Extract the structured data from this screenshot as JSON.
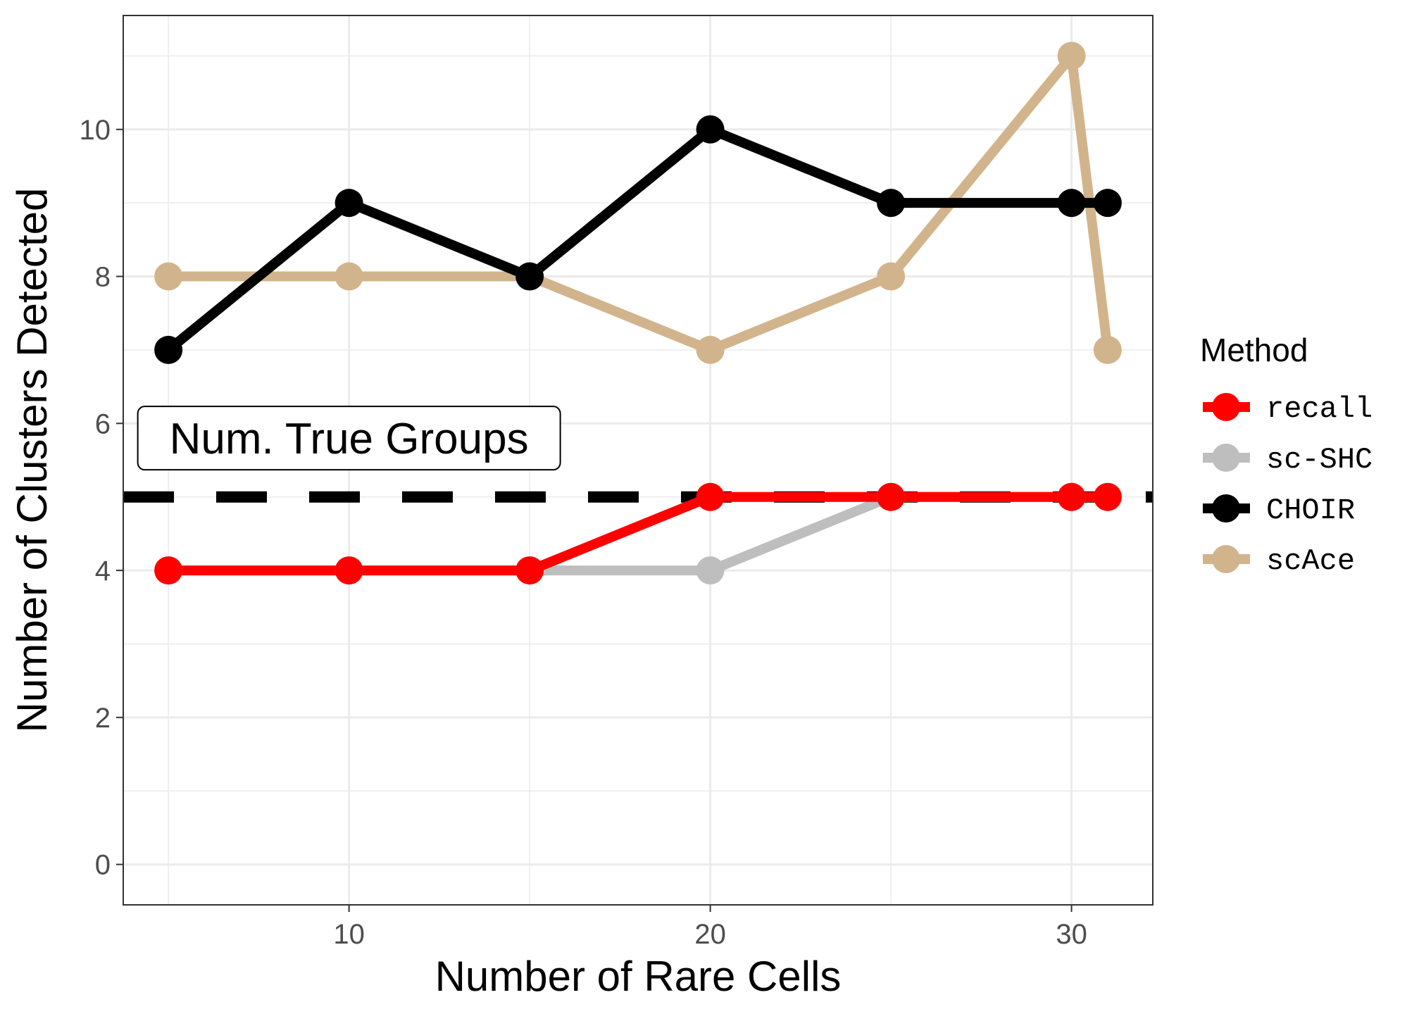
{
  "chart_data": {
    "type": "line",
    "xlabel": "Number of Rare Cells",
    "ylabel": "Number of Clusters Detected",
    "xlim": [
      3.75,
      32.25
    ],
    "ylim": [
      -0.55,
      11.55
    ],
    "x_ticks": [
      10,
      20,
      30
    ],
    "y_ticks": [
      0,
      2,
      4,
      6,
      8,
      10
    ],
    "grid": true,
    "legend": {
      "title": "Method",
      "position": "right"
    },
    "series": [
      {
        "name": "scAce",
        "color": "#d2b48c",
        "x": [
          5,
          10,
          15,
          20,
          25,
          30,
          31
        ],
        "y": [
          8,
          8,
          8,
          7,
          8,
          11,
          7
        ]
      },
      {
        "name": "CHOIR",
        "color": "#000000",
        "x": [
          5,
          10,
          15,
          20,
          25,
          30,
          31
        ],
        "y": [
          7,
          9,
          8,
          10,
          9,
          9,
          9
        ]
      },
      {
        "name": "sc-SHC",
        "color": "#bebebe",
        "x": [
          5,
          10,
          15,
          20,
          25,
          30,
          31
        ],
        "y": [
          4,
          4,
          4,
          4,
          5,
          5,
          5
        ]
      },
      {
        "name": "recall",
        "color": "#ff0000",
        "x": [
          5,
          10,
          15,
          20,
          25,
          30,
          31
        ],
        "y": [
          4,
          4,
          4,
          5,
          5,
          5,
          5
        ]
      }
    ],
    "legend_order": [
      "recall",
      "sc-SHC",
      "CHOIR",
      "scAce"
    ],
    "reference_line": {
      "y": 5,
      "style": "dashed",
      "color": "#000000"
    },
    "annotation": {
      "text": "Num. True Groups",
      "x": 10,
      "y": 5.8
    }
  }
}
